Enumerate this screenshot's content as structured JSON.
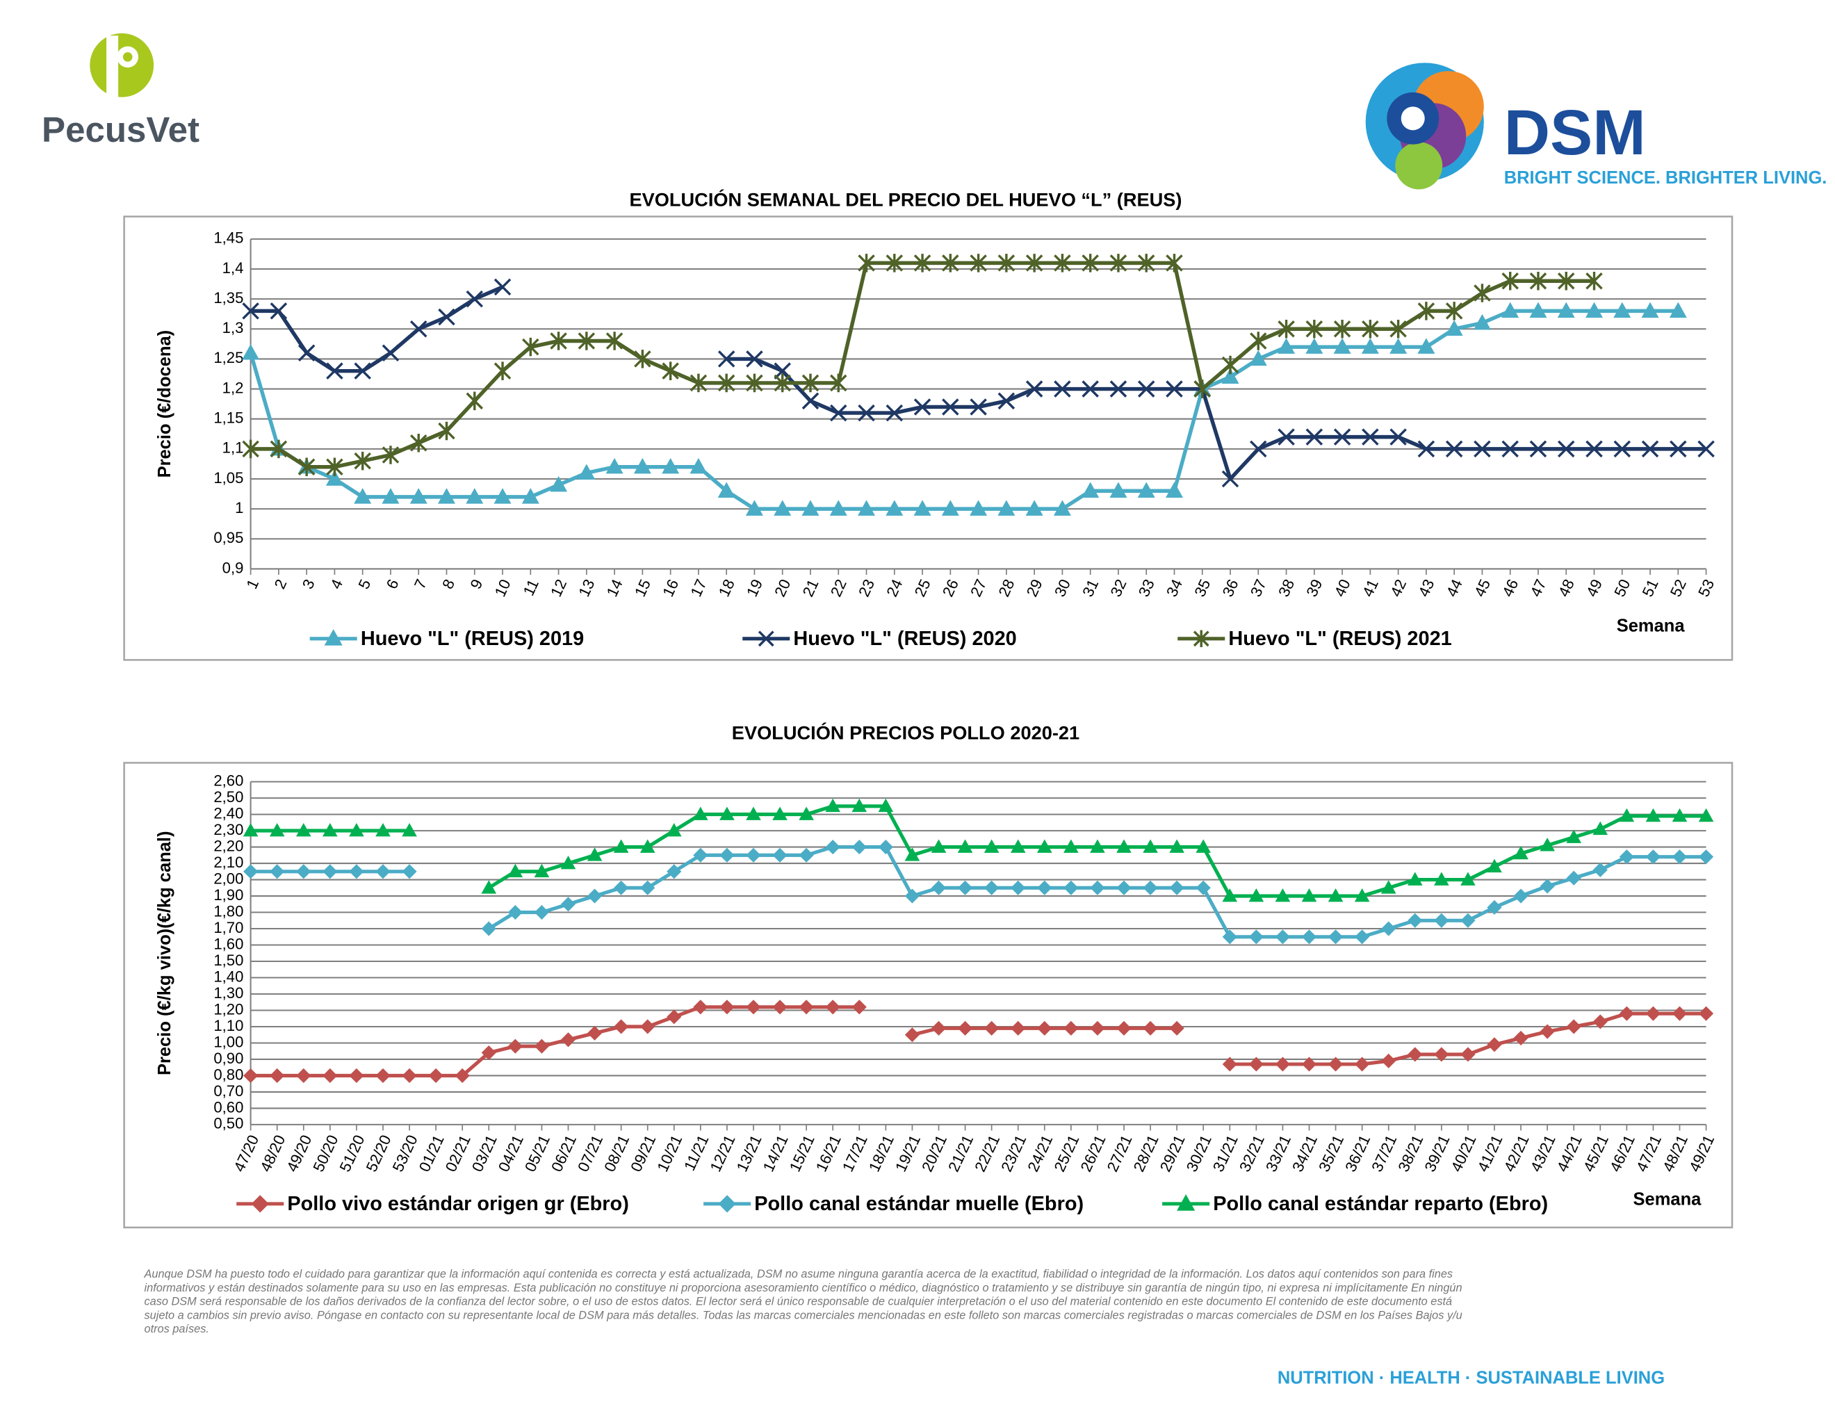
{
  "header": {
    "left_logo": "PecusVet",
    "right_logo": "DSM",
    "tagline": "BRIGHT SCIENCE. BRIGHTER LIVING."
  },
  "chart_data": [
    {
      "type": "line",
      "title": "EVOLUCIÓN SEMANAL DEL PRECIO DEL HUEVO “L” (REUS)",
      "y_label": "Precio (€/docena)",
      "x_label": "Semana",
      "categories": [
        "1",
        "2",
        "3",
        "4",
        "5",
        "6",
        "7",
        "8",
        "9",
        "10",
        "11",
        "12",
        "13",
        "14",
        "15",
        "16",
        "17",
        "18",
        "19",
        "20",
        "21",
        "22",
        "23",
        "24",
        "25",
        "26",
        "27",
        "28",
        "29",
        "30",
        "31",
        "32",
        "33",
        "34",
        "35",
        "36",
        "37",
        "38",
        "39",
        "40",
        "41",
        "42",
        "43",
        "44",
        "45",
        "46",
        "47",
        "48",
        "49",
        "50",
        "51",
        "52",
        "53"
      ],
      "ylim": [
        0.9,
        1.45
      ],
      "yticks": [
        {
          "value": 0.9,
          "label": "0,9"
        },
        {
          "value": 0.95,
          "label": "0,95"
        },
        1,
        {
          "value": 1.05,
          "label": "1,05"
        },
        {
          "value": 1.1,
          "label": "1,1"
        },
        {
          "value": 1.15,
          "label": "1,15"
        },
        {
          "value": 1.2,
          "label": "1,2"
        },
        {
          "value": 1.25,
          "label": "1,25"
        },
        {
          "value": 1.3,
          "label": "1,3"
        },
        {
          "value": 1.35,
          "label": "1,35"
        },
        {
          "value": 1.4,
          "label": "1,4"
        },
        {
          "value": 1.45,
          "label": "1,45"
        }
      ],
      "grid": true,
      "legend": "bottom",
      "series": [
        {
          "name": "Huevo \"L\" (REUS) 2019",
          "color": "#4bacc6",
          "marker": "triangle",
          "values": [
            1.26,
            1.1,
            1.07,
            1.05,
            1.02,
            1.02,
            1.02,
            1.02,
            1.02,
            1.02,
            1.02,
            1.04,
            1.06,
            1.07,
            1.07,
            1.07,
            1.07,
            1.03,
            1.0,
            1.0,
            1.0,
            1.0,
            1.0,
            1.0,
            1.0,
            1.0,
            1.0,
            1.0,
            1.0,
            1.0,
            1.03,
            1.03,
            1.03,
            1.03,
            1.2,
            1.22,
            1.25,
            1.27,
            1.27,
            1.27,
            1.27,
            1.27,
            1.27,
            1.3,
            1.31,
            1.33,
            1.33,
            1.33,
            1.33,
            1.33,
            1.33,
            1.33,
            null
          ]
        },
        {
          "name": "Huevo \"L\" (REUS) 2020",
          "color": "#1f3864",
          "marker": "x",
          "values": [
            1.33,
            1.33,
            1.26,
            1.23,
            1.23,
            1.26,
            1.3,
            1.32,
            1.35,
            1.37,
            null,
            null,
            null,
            null,
            null,
            null,
            null,
            1.25,
            1.25,
            1.23,
            1.18,
            1.16,
            1.16,
            1.16,
            1.17,
            1.17,
            1.17,
            1.18,
            1.2,
            1.2,
            1.2,
            1.2,
            1.2,
            1.2,
            1.2,
            1.05,
            1.1,
            1.12,
            1.12,
            1.12,
            1.12,
            1.12,
            1.1,
            1.1,
            1.1,
            1.1,
            1.1,
            1.1,
            1.1,
            1.1,
            1.1,
            1.1,
            1.1
          ]
        },
        {
          "name": "Huevo \"L\" (REUS) 2021",
          "color": "#4f6228",
          "marker": "asterisk",
          "values": [
            1.1,
            1.1,
            1.07,
            1.07,
            1.08,
            1.09,
            1.11,
            1.13,
            1.18,
            1.23,
            1.27,
            1.28,
            1.28,
            1.28,
            1.25,
            1.23,
            1.21,
            1.21,
            1.21,
            1.21,
            1.21,
            1.21,
            1.41,
            1.41,
            1.41,
            1.41,
            1.41,
            1.41,
            1.41,
            1.41,
            1.41,
            1.41,
            1.41,
            1.41,
            1.2,
            1.24,
            1.28,
            1.3,
            1.3,
            1.3,
            1.3,
            1.3,
            1.33,
            1.33,
            1.36,
            1.38,
            1.38,
            1.38,
            1.38,
            null,
            null,
            null,
            null
          ]
        }
      ]
    },
    {
      "type": "line",
      "title": "EVOLUCIÓN PRECIOS POLLO 2020-21",
      "y_label": "Precio (€/kg vivo)(€/kg canal)",
      "x_label": "Semana",
      "categories": [
        "47/20",
        "48/20",
        "49/20",
        "50/20",
        "51/20",
        "52/20",
        "53/20",
        "01/21",
        "02/21",
        "03/21",
        "04/21",
        "05/21",
        "06/21",
        "07/21",
        "08/21",
        "09/21",
        "10/21",
        "11/21",
        "12/21",
        "13/21",
        "14/21",
        "15/21",
        "16/21",
        "17/21",
        "18/21",
        "19/21",
        "20/21",
        "21/21",
        "22/21",
        "23/21",
        "24/21",
        "25/21",
        "26/21",
        "27/21",
        "28/21",
        "29/21",
        "30/21",
        "31/21",
        "32/21",
        "33/21",
        "34/21",
        "35/21",
        "36/21",
        "37/21",
        "38/21",
        "39/21",
        "40/21",
        "41/21",
        "42/21",
        "43/21",
        "44/21",
        "45/21",
        "46/21",
        "47/21",
        "48/21",
        "49/21"
      ],
      "ylim": [
        0.5,
        2.6
      ],
      "yticks": [
        {
          "value": 0.5,
          "label": "0,50"
        },
        {
          "value": 0.6,
          "label": "0,60"
        },
        {
          "value": 0.7,
          "label": "0,70"
        },
        {
          "value": 0.8,
          "label": "0,80"
        },
        {
          "value": 0.9,
          "label": "0,90"
        },
        {
          "value": 1.0,
          "label": "1,00"
        },
        {
          "value": 1.1,
          "label": "1,10"
        },
        {
          "value": 1.2,
          "label": "1,20"
        },
        {
          "value": 1.3,
          "label": "1,30"
        },
        {
          "value": 1.4,
          "label": "1,40"
        },
        {
          "value": 1.5,
          "label": "1,50"
        },
        {
          "value": 1.6,
          "label": "1,60"
        },
        {
          "value": 1.7,
          "label": "1,70"
        },
        {
          "value": 1.8,
          "label": "1,80"
        },
        {
          "value": 1.9,
          "label": "1,90"
        },
        {
          "value": 2.0,
          "label": "2,00"
        },
        {
          "value": 2.1,
          "label": "2,10"
        },
        {
          "value": 2.2,
          "label": "2,20"
        },
        {
          "value": 2.3,
          "label": "2,30"
        },
        {
          "value": 2.4,
          "label": "2,40"
        },
        {
          "value": 2.5,
          "label": "2,50"
        },
        {
          "value": 2.6,
          "label": "2,60"
        }
      ],
      "grid": true,
      "legend": "bottom",
      "series": [
        {
          "name": "Pollo vivo estándar origen gr (Ebro)",
          "color": "#c0504d",
          "marker": "diamond",
          "values": [
            0.8,
            0.8,
            0.8,
            0.8,
            0.8,
            0.8,
            0.8,
            0.8,
            0.8,
            0.94,
            0.98,
            0.98,
            1.02,
            1.06,
            1.1,
            1.1,
            1.16,
            1.22,
            1.22,
            1.22,
            1.22,
            1.22,
            1.22,
            1.22,
            null,
            1.05,
            1.09,
            1.09,
            1.09,
            1.09,
            1.09,
            1.09,
            1.09,
            1.09,
            1.09,
            1.09,
            null,
            0.87,
            0.87,
            0.87,
            0.87,
            0.87,
            0.87,
            0.89,
            0.93,
            0.93,
            0.93,
            0.99,
            1.03,
            1.07,
            1.1,
            1.13,
            1.18,
            1.18,
            1.18,
            1.18
          ]
        },
        {
          "name": "Pollo canal estándar muelle (Ebro)",
          "color": "#4bacc6",
          "marker": "diamond",
          "values": [
            2.05,
            2.05,
            2.05,
            2.05,
            2.05,
            2.05,
            2.05,
            null,
            null,
            1.7,
            1.8,
            1.8,
            1.85,
            1.9,
            1.95,
            1.95,
            2.05,
            2.15,
            2.15,
            2.15,
            2.15,
            2.15,
            2.2,
            2.2,
            2.2,
            1.9,
            1.95,
            1.95,
            1.95,
            1.95,
            1.95,
            1.95,
            1.95,
            1.95,
            1.95,
            1.95,
            1.95,
            1.65,
            1.65,
            1.65,
            1.65,
            1.65,
            1.65,
            1.7,
            1.75,
            1.75,
            1.75,
            1.83,
            1.9,
            1.96,
            2.01,
            2.06,
            2.14,
            2.14,
            2.14,
            2.14
          ]
        },
        {
          "name": "Pollo canal estándar reparto (Ebro)",
          "color": "#00b050",
          "marker": "triangle",
          "values": [
            2.3,
            2.3,
            2.3,
            2.3,
            2.3,
            2.3,
            2.3,
            null,
            null,
            1.95,
            2.05,
            2.05,
            2.1,
            2.15,
            2.2,
            2.2,
            2.3,
            2.4,
            2.4,
            2.4,
            2.4,
            2.4,
            2.45,
            2.45,
            2.45,
            2.15,
            2.2,
            2.2,
            2.2,
            2.2,
            2.2,
            2.2,
            2.2,
            2.2,
            2.2,
            2.2,
            2.2,
            1.9,
            1.9,
            1.9,
            1.9,
            1.9,
            1.9,
            1.95,
            2.0,
            2.0,
            2.0,
            2.08,
            2.16,
            2.21,
            2.26,
            2.31,
            2.39,
            2.39,
            2.39,
            2.39
          ]
        }
      ]
    }
  ],
  "disclaimer": [
    "Aunque DSM ha puesto todo el cuidado para garantizar que la información aquí contenida es correcta y está actualizada, DSM no asume ninguna garantía acerca de la exactitud, fiabilidad o integridad de la información. Los datos aquí contenidos son para fines",
    "informativos y están destinados solamente para su uso en las empresas. Esta publicación no constituye ni proporciona asesoramiento científico o médico, diagnóstico o tratamiento y se distribuye sin garantía de ningún tipo, ni expresa ni implícitamente En ningún",
    "caso DSM será responsable de los daños derivados de la confianza del lector sobre, o el uso de estos datos. El lector será el único responsable de cualquier interpretación o el uso del material contenido en este documento El contenido de este documento está",
    "sujeto a cambios sin previo aviso. Póngase en contacto con su representante local de DSM para más detalles. Todas las marcas comerciales mencionadas en este folleto son marcas comerciales registradas o marcas comerciales de DSM en los Países Bajos y/u",
    "otros países."
  ],
  "footer": "NUTRITION · HEALTH · SUSTAINABLE LIVING"
}
